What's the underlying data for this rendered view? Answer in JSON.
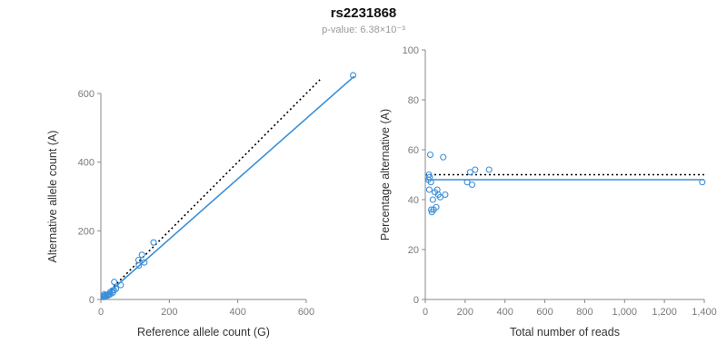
{
  "header": {
    "title": "rs2231868",
    "subtitle": "p-value: 6.38×10⁻³"
  },
  "colors": {
    "accent_blue": "#3a8fd9",
    "identity_black": "#000000",
    "axis_gray": "#888888",
    "tick_label_gray": "#7a7a7a",
    "subtitle_gray": "#999999"
  },
  "chart_data": [
    {
      "type": "scatter",
      "name": "allele-count-plot",
      "xlabel": "Reference allele count (G)",
      "ylabel": "Alternative allele count (A)",
      "x_axis_range": [
        0,
        600
      ],
      "y_axis_range": [
        0,
        600
      ],
      "xticks": [
        0,
        200,
        400,
        600
      ],
      "xtick_labels": [
        "0",
        "200",
        "400",
        "600"
      ],
      "yticks": [
        0,
        200,
        400,
        600
      ],
      "ytick_labels": [
        "0",
        "200",
        "400",
        "600"
      ],
      "points": [
        [
          8,
          7
        ],
        [
          9,
          9
        ],
        [
          11,
          9
        ],
        [
          11,
          11
        ],
        [
          10,
          15
        ],
        [
          15,
          13
        ],
        [
          19,
          11
        ],
        [
          21,
          12
        ],
        [
          23,
          15
        ],
        [
          27,
          15
        ],
        [
          27,
          21
        ],
        [
          35,
          20
        ],
        [
          34,
          26
        ],
        [
          38,
          27
        ],
        [
          44,
          31
        ],
        [
          39,
          51
        ],
        [
          58,
          42
        ],
        [
          111,
          99
        ],
        [
          110,
          115
        ],
        [
          127,
          108
        ],
        [
          120,
          130
        ],
        [
          154,
          166
        ],
        [
          737,
          653
        ]
      ],
      "lines": [
        {
          "name": "identity-line",
          "dash": "dotted",
          "x": [
            0,
            640
          ],
          "y": [
            0,
            640
          ],
          "color": "#000000"
        },
        {
          "name": "fit-line",
          "dash": "solid",
          "x": [
            0,
            740
          ],
          "y": [
            0,
            650
          ],
          "color": "#3a8fd9"
        }
      ]
    },
    {
      "type": "scatter",
      "name": "percentage-alternative-plot",
      "xlabel": "Total number of reads",
      "ylabel": "Percentage alternative (A)",
      "x_axis_range": [
        0,
        1400
      ],
      "y_axis_range": [
        0,
        100
      ],
      "xticks": [
        0,
        200,
        400,
        600,
        800,
        1000,
        1200,
        1400
      ],
      "xtick_labels": [
        "0",
        "200",
        "400",
        "600",
        "800",
        "1,000",
        "1,200",
        "1,400"
      ],
      "yticks": [
        0,
        20,
        40,
        60,
        80,
        100
      ],
      "ytick_labels": [
        "0",
        "20",
        "40",
        "60",
        "80",
        "100"
      ],
      "points": [
        [
          15,
          48
        ],
        [
          18,
          50
        ],
        [
          20,
          44
        ],
        [
          22,
          49
        ],
        [
          25,
          58
        ],
        [
          28,
          47
        ],
        [
          30,
          36
        ],
        [
          33,
          35
        ],
        [
          38,
          40
        ],
        [
          42,
          36
        ],
        [
          48,
          43
        ],
        [
          55,
          37
        ],
        [
          60,
          44
        ],
        [
          65,
          42
        ],
        [
          75,
          41
        ],
        [
          90,
          57
        ],
        [
          100,
          42
        ],
        [
          210,
          47
        ],
        [
          225,
          51
        ],
        [
          235,
          46
        ],
        [
          250,
          52
        ],
        [
          320,
          52
        ],
        [
          1390,
          47
        ]
      ],
      "lines": [
        {
          "name": "expected-percentage-line",
          "dash": "dotted",
          "x": [
            0,
            1400
          ],
          "y": [
            50,
            50
          ],
          "color": "#000000"
        },
        {
          "name": "fit-line",
          "dash": "solid",
          "x": [
            0,
            1400
          ],
          "y": [
            48,
            48
          ],
          "color": "#3a8fd9"
        }
      ]
    }
  ]
}
